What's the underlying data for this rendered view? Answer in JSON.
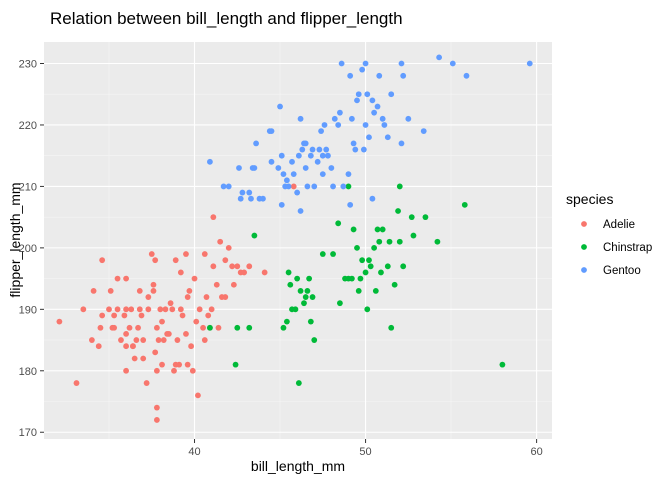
{
  "chart_data": {
    "type": "scatter",
    "title": "Relation between bill_length and flipper_length",
    "xlabel": "bill_length_mm",
    "ylabel": "flipper_length_mm",
    "xlim": [
      31.2,
      60.9
    ],
    "ylim": [
      168.9,
      233.5
    ],
    "x_ticks": [
      40,
      50,
      60
    ],
    "y_ticks": [
      170,
      180,
      190,
      200,
      210,
      220,
      230
    ],
    "grid": true,
    "legend_title": "species",
    "legend_position": "right",
    "colors": {
      "panel": "#ebebeb",
      "grid_major": "#ffffff",
      "tick": "#333333"
    },
    "series": [
      {
        "name": "Adelie",
        "color": "#f8766d",
        "points": [
          [
            32.1,
            188
          ],
          [
            33.1,
            178
          ],
          [
            33.5,
            190
          ],
          [
            34.0,
            185
          ],
          [
            34.1,
            193
          ],
          [
            34.4,
            184
          ],
          [
            34.5,
            187
          ],
          [
            34.6,
            189
          ],
          [
            34.6,
            198
          ],
          [
            35.0,
            190
          ],
          [
            35.1,
            193
          ],
          [
            35.2,
            187
          ],
          [
            35.3,
            187
          ],
          [
            35.5,
            190
          ],
          [
            35.5,
            195
          ],
          [
            35.7,
            185
          ],
          [
            35.9,
            189
          ],
          [
            36.0,
            180
          ],
          [
            36.0,
            184
          ],
          [
            36.0,
            186
          ],
          [
            36.0,
            190
          ],
          [
            36.0,
            195
          ],
          [
            36.2,
            187
          ],
          [
            36.3,
            190
          ],
          [
            36.4,
            184
          ],
          [
            36.5,
            182
          ],
          [
            36.6,
            185
          ],
          [
            36.7,
            187
          ],
          [
            36.8,
            193
          ],
          [
            36.9,
            189
          ],
          [
            37.0,
            185
          ],
          [
            37.2,
            178
          ],
          [
            37.3,
            190
          ],
          [
            37.3,
            192
          ],
          [
            37.5,
            199
          ],
          [
            37.6,
            194
          ],
          [
            37.7,
            183
          ],
          [
            37.7,
            198
          ],
          [
            37.8,
            172
          ],
          [
            37.8,
            174
          ],
          [
            37.8,
            180
          ],
          [
            37.9,
            185
          ],
          [
            38.0,
            190
          ],
          [
            38.1,
            181
          ],
          [
            38.1,
            188
          ],
          [
            38.2,
            185
          ],
          [
            38.3,
            190
          ],
          [
            38.5,
            186
          ],
          [
            38.6,
            191
          ],
          [
            38.7,
            190
          ],
          [
            38.8,
            180
          ],
          [
            38.9,
            181
          ],
          [
            39.0,
            185
          ],
          [
            39.1,
            181
          ],
          [
            39.2,
            190
          ],
          [
            39.3,
            189
          ],
          [
            39.5,
            186
          ],
          [
            39.6,
            192
          ],
          [
            39.7,
            193
          ],
          [
            39.8,
            184
          ],
          [
            39.9,
            180
          ],
          [
            40.1,
            188
          ],
          [
            40.2,
            176
          ],
          [
            40.3,
            190
          ],
          [
            40.5,
            187
          ],
          [
            40.6,
            185
          ],
          [
            40.7,
            192
          ],
          [
            40.8,
            189
          ],
          [
            40.9,
            187
          ],
          [
            41.0,
            190
          ],
          [
            41.1,
            197
          ],
          [
            41.1,
            205
          ],
          [
            41.3,
            194
          ],
          [
            41.4,
            187
          ],
          [
            41.5,
            201
          ],
          [
            41.6,
            192
          ],
          [
            41.8,
            198
          ],
          [
            42.0,
            200
          ],
          [
            42.2,
            197
          ],
          [
            42.3,
            194
          ],
          [
            42.5,
            197
          ],
          [
            42.7,
            196
          ],
          [
            42.9,
            196
          ],
          [
            43.2,
            197
          ],
          [
            44.1,
            196
          ],
          [
            45.8,
            210
          ],
          [
            39.2,
            196
          ],
          [
            37.6,
            193
          ],
          [
            36.8,
            190
          ],
          [
            40.0,
            195
          ],
          [
            38.9,
            198
          ],
          [
            39.5,
            199
          ],
          [
            38.4,
            186
          ],
          [
            37.0,
            182
          ],
          [
            36.4,
            184
          ],
          [
            35.3,
            189
          ],
          [
            41.8,
            192
          ],
          [
            40.6,
            199
          ],
          [
            39.6,
            181
          ],
          [
            37.8,
            187
          ]
        ]
      },
      {
        "name": "Chinstrap",
        "color": "#00ba38",
        "points": [
          [
            40.9,
            187
          ],
          [
            42.4,
            181
          ],
          [
            42.5,
            187
          ],
          [
            43.2,
            187
          ],
          [
            43.5,
            202
          ],
          [
            45.2,
            187
          ],
          [
            45.4,
            188
          ],
          [
            45.5,
            196
          ],
          [
            45.6,
            194
          ],
          [
            45.7,
            190
          ],
          [
            45.9,
            190
          ],
          [
            46.0,
            195
          ],
          [
            46.1,
            178
          ],
          [
            46.2,
            193
          ],
          [
            46.4,
            191
          ],
          [
            46.5,
            192
          ],
          [
            46.6,
            193
          ],
          [
            46.7,
            195
          ],
          [
            46.8,
            188
          ],
          [
            46.9,
            192
          ],
          [
            47.0,
            185
          ],
          [
            47.5,
            199
          ],
          [
            48.1,
            199
          ],
          [
            48.5,
            191
          ],
          [
            48.8,
            195
          ],
          [
            49.0,
            195
          ],
          [
            49.2,
            195
          ],
          [
            49.3,
            203
          ],
          [
            49.5,
            200
          ],
          [
            49.6,
            193
          ],
          [
            49.7,
            195
          ],
          [
            49.8,
            198
          ],
          [
            50.0,
            196
          ],
          [
            50.2,
            198
          ],
          [
            50.3,
            197
          ],
          [
            50.5,
            200
          ],
          [
            50.6,
            193
          ],
          [
            50.7,
            203
          ],
          [
            50.8,
            201
          ],
          [
            50.9,
            196
          ],
          [
            51.0,
            203
          ],
          [
            51.3,
            197
          ],
          [
            51.4,
            201
          ],
          [
            51.5,
            187
          ],
          [
            51.7,
            194
          ],
          [
            51.9,
            206
          ],
          [
            52.0,
            201
          ],
          [
            52.2,
            197
          ],
          [
            52.7,
            205
          ],
          [
            52.8,
            202
          ],
          [
            53.5,
            205
          ],
          [
            54.2,
            201
          ],
          [
            55.8,
            207
          ],
          [
            58.0,
            181
          ],
          [
            49.0,
            210
          ],
          [
            50.1,
            190
          ],
          [
            52.0,
            210
          ],
          [
            48.4,
            204
          ]
        ]
      },
      {
        "name": "Gentoo",
        "color": "#619cff",
        "points": [
          [
            40.9,
            214
          ],
          [
            41.7,
            210
          ],
          [
            42.0,
            210
          ],
          [
            42.6,
            213
          ],
          [
            42.7,
            208
          ],
          [
            42.8,
            209
          ],
          [
            43.2,
            209
          ],
          [
            43.3,
            208
          ],
          [
            43.4,
            213
          ],
          [
            43.5,
            213
          ],
          [
            43.6,
            217
          ],
          [
            43.8,
            208
          ],
          [
            44.0,
            208
          ],
          [
            44.4,
            219
          ],
          [
            44.5,
            214
          ],
          [
            44.9,
            213
          ],
          [
            45.1,
            215
          ],
          [
            45.2,
            212
          ],
          [
            45.3,
            210
          ],
          [
            45.4,
            211
          ],
          [
            45.5,
            210
          ],
          [
            45.7,
            214
          ],
          [
            45.8,
            212
          ],
          [
            46.1,
            215
          ],
          [
            46.2,
            221
          ],
          [
            46.3,
            216
          ],
          [
            46.4,
            217
          ],
          [
            46.5,
            213
          ],
          [
            46.6,
            210
          ],
          [
            46.8,
            215
          ],
          [
            46.9,
            216
          ],
          [
            47.2,
            214
          ],
          [
            47.3,
            216
          ],
          [
            47.4,
            219
          ],
          [
            47.5,
            215
          ],
          [
            47.6,
            220
          ],
          [
            47.7,
            216
          ],
          [
            47.8,
            215
          ],
          [
            48.1,
            210
          ],
          [
            48.2,
            221
          ],
          [
            48.4,
            220
          ],
          [
            48.5,
            222
          ],
          [
            48.6,
            230
          ],
          [
            48.7,
            210
          ],
          [
            49.0,
            212
          ],
          [
            49.1,
            228
          ],
          [
            49.2,
            221
          ],
          [
            49.3,
            217
          ],
          [
            49.4,
            216
          ],
          [
            49.5,
            224
          ],
          [
            49.6,
            225
          ],
          [
            49.8,
            229
          ],
          [
            50.0,
            220
          ],
          [
            50.1,
            225
          ],
          [
            50.2,
            218
          ],
          [
            50.4,
            224
          ],
          [
            50.5,
            222
          ],
          [
            50.7,
            223
          ],
          [
            50.8,
            228
          ],
          [
            51.1,
            220
          ],
          [
            51.3,
            218
          ],
          [
            51.5,
            225
          ],
          [
            52.1,
            230
          ],
          [
            52.2,
            228
          ],
          [
            52.5,
            221
          ],
          [
            53.4,
            219
          ],
          [
            54.3,
            231
          ],
          [
            55.1,
            230
          ],
          [
            55.9,
            228
          ],
          [
            59.6,
            230
          ],
          [
            45.0,
            223
          ],
          [
            46.0,
            209
          ],
          [
            47.0,
            210
          ],
          [
            48.0,
            213
          ],
          [
            49.9,
            216
          ],
          [
            50.0,
            230
          ],
          [
            51.0,
            221
          ],
          [
            44.5,
            219
          ],
          [
            46.5,
            217
          ],
          [
            47.5,
            212
          ],
          [
            45.1,
            207
          ],
          [
            46.2,
            206
          ],
          [
            49.1,
            207
          ],
          [
            50.4,
            208
          ],
          [
            52.1,
            217
          ]
        ]
      }
    ]
  }
}
